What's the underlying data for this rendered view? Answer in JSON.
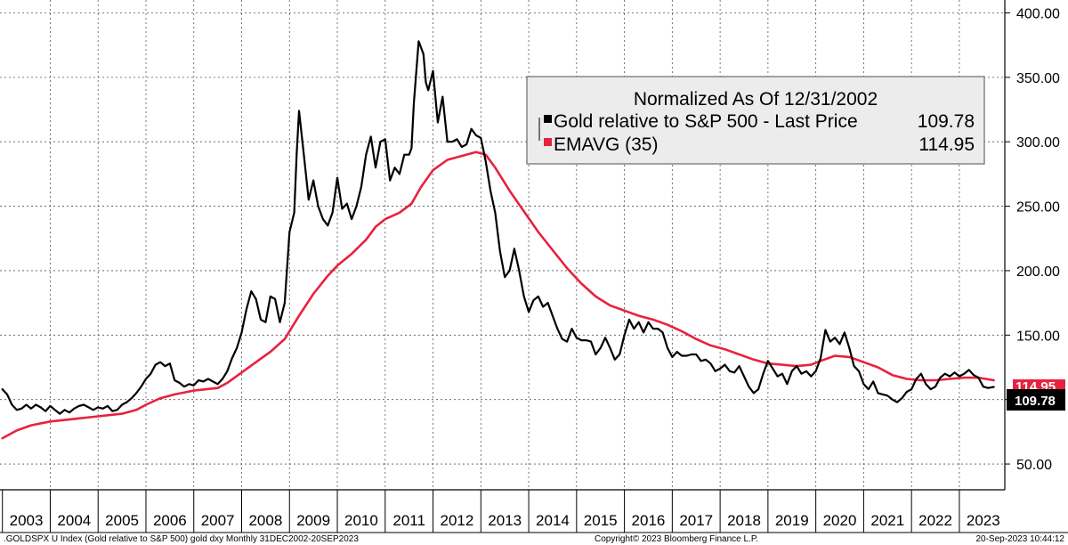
{
  "chart_data": {
    "type": "line",
    "legend": {
      "title": "Normalized As Of 12/31/2002",
      "placement": "top-right",
      "entries": [
        {
          "name": "Gold relative to S&P 500 - Last Price",
          "value": "109.78",
          "color": "#000000"
        },
        {
          "name": "EMAVG (35)",
          "value": "114.95",
          "color": "#e8223e"
        }
      ]
    },
    "y_axis": {
      "position": "right",
      "range": [
        30,
        410
      ],
      "ticks": [
        "50.00",
        "100.00",
        "150.00",
        "200.00",
        "250.00",
        "300.00",
        "350.00",
        "400.00"
      ],
      "grid": true
    },
    "x_axis": {
      "range": [
        2002.95,
        2023.95
      ],
      "ticks": [
        "2003",
        "2004",
        "2005",
        "2006",
        "2007",
        "2008",
        "2009",
        "2010",
        "2011",
        "2012",
        "2013",
        "2014",
        "2015",
        "2016",
        "2017",
        "2018",
        "2019",
        "2020",
        "2021",
        "2022",
        "2023"
      ],
      "grid": true
    },
    "last_value_badges": [
      {
        "text": "114.95",
        "color": "#e8223e"
      },
      {
        "text": "109.78",
        "color": "#000000"
      }
    ],
    "series": [
      {
        "name": "Gold relative to S&P 500 - Last Price",
        "color": "#000000",
        "points": [
          [
            2003.0,
            108
          ],
          [
            2003.1,
            104
          ],
          [
            2003.2,
            96
          ],
          [
            2003.3,
            92
          ],
          [
            2003.4,
            93
          ],
          [
            2003.5,
            96
          ],
          [
            2003.6,
            93
          ],
          [
            2003.7,
            96
          ],
          [
            2003.8,
            94
          ],
          [
            2003.9,
            91
          ],
          [
            2004.0,
            95
          ],
          [
            2004.1,
            92
          ],
          [
            2004.2,
            89
          ],
          [
            2004.3,
            92
          ],
          [
            2004.4,
            90
          ],
          [
            2004.5,
            93
          ],
          [
            2004.6,
            95
          ],
          [
            2004.7,
            96
          ],
          [
            2004.8,
            94
          ],
          [
            2004.9,
            92
          ],
          [
            2005.0,
            94
          ],
          [
            2005.1,
            93
          ],
          [
            2005.2,
            95
          ],
          [
            2005.3,
            91
          ],
          [
            2005.4,
            92
          ],
          [
            2005.5,
            96
          ],
          [
            2005.6,
            98
          ],
          [
            2005.7,
            101
          ],
          [
            2005.8,
            105
          ],
          [
            2005.9,
            110
          ],
          [
            2006.0,
            116
          ],
          [
            2006.1,
            120
          ],
          [
            2006.2,
            127
          ],
          [
            2006.3,
            129
          ],
          [
            2006.4,
            126
          ],
          [
            2006.5,
            128
          ],
          [
            2006.6,
            115
          ],
          [
            2006.7,
            113
          ],
          [
            2006.8,
            110
          ],
          [
            2006.9,
            112
          ],
          [
            2007.0,
            111
          ],
          [
            2007.1,
            115
          ],
          [
            2007.2,
            114
          ],
          [
            2007.3,
            116
          ],
          [
            2007.4,
            114
          ],
          [
            2007.5,
            112
          ],
          [
            2007.6,
            116
          ],
          [
            2007.7,
            122
          ],
          [
            2007.8,
            132
          ],
          [
            2007.9,
            140
          ],
          [
            2008.0,
            152
          ],
          [
            2008.1,
            170
          ],
          [
            2008.2,
            184
          ],
          [
            2008.3,
            178
          ],
          [
            2008.4,
            162
          ],
          [
            2008.5,
            160
          ],
          [
            2008.6,
            180
          ],
          [
            2008.7,
            178
          ],
          [
            2008.8,
            160
          ],
          [
            2008.9,
            175
          ],
          [
            2009.0,
            230
          ],
          [
            2009.1,
            245
          ],
          [
            2009.15,
            290
          ],
          [
            2009.2,
            324
          ],
          [
            2009.3,
            290
          ],
          [
            2009.4,
            255
          ],
          [
            2009.5,
            270
          ],
          [
            2009.6,
            250
          ],
          [
            2009.7,
            240
          ],
          [
            2009.8,
            235
          ],
          [
            2009.9,
            245
          ],
          [
            2010.0,
            272
          ],
          [
            2010.1,
            248
          ],
          [
            2010.2,
            252
          ],
          [
            2010.3,
            240
          ],
          [
            2010.4,
            250
          ],
          [
            2010.5,
            265
          ],
          [
            2010.6,
            290
          ],
          [
            2010.7,
            304
          ],
          [
            2010.8,
            280
          ],
          [
            2010.9,
            300
          ],
          [
            2011.0,
            302
          ],
          [
            2011.1,
            270
          ],
          [
            2011.2,
            280
          ],
          [
            2011.3,
            275
          ],
          [
            2011.4,
            290
          ],
          [
            2011.5,
            290
          ],
          [
            2011.55,
            295
          ],
          [
            2011.6,
            330
          ],
          [
            2011.7,
            378
          ],
          [
            2011.8,
            368
          ],
          [
            2011.85,
            346
          ],
          [
            2011.9,
            340
          ],
          [
            2012.0,
            355
          ],
          [
            2012.1,
            315
          ],
          [
            2012.2,
            335
          ],
          [
            2012.3,
            300
          ],
          [
            2012.4,
            300
          ],
          [
            2012.5,
            302
          ],
          [
            2012.6,
            296
          ],
          [
            2012.7,
            298
          ],
          [
            2012.8,
            310
          ],
          [
            2012.9,
            305
          ],
          [
            2013.0,
            303
          ],
          [
            2013.1,
            285
          ],
          [
            2013.2,
            262
          ],
          [
            2013.3,
            245
          ],
          [
            2013.4,
            215
          ],
          [
            2013.5,
            195
          ],
          [
            2013.6,
            200
          ],
          [
            2013.7,
            217
          ],
          [
            2013.8,
            200
          ],
          [
            2013.9,
            180
          ],
          [
            2014.0,
            168
          ],
          [
            2014.1,
            177
          ],
          [
            2014.2,
            180
          ],
          [
            2014.3,
            172
          ],
          [
            2014.4,
            175
          ],
          [
            2014.5,
            165
          ],
          [
            2014.6,
            155
          ],
          [
            2014.7,
            147
          ],
          [
            2014.8,
            145
          ],
          [
            2014.9,
            155
          ],
          [
            2015.0,
            148
          ],
          [
            2015.1,
            146
          ],
          [
            2015.2,
            146
          ],
          [
            2015.3,
            145
          ],
          [
            2015.4,
            135
          ],
          [
            2015.5,
            140
          ],
          [
            2015.6,
            148
          ],
          [
            2015.7,
            140
          ],
          [
            2015.8,
            131
          ],
          [
            2015.9,
            135
          ],
          [
            2016.0,
            150
          ],
          [
            2016.1,
            162
          ],
          [
            2016.2,
            155
          ],
          [
            2016.3,
            160
          ],
          [
            2016.4,
            152
          ],
          [
            2016.5,
            160
          ],
          [
            2016.6,
            155
          ],
          [
            2016.7,
            155
          ],
          [
            2016.8,
            152
          ],
          [
            2016.9,
            140
          ],
          [
            2017.0,
            133
          ],
          [
            2017.1,
            137
          ],
          [
            2017.2,
            134
          ],
          [
            2017.3,
            134
          ],
          [
            2017.4,
            135
          ],
          [
            2017.5,
            135
          ],
          [
            2017.6,
            130
          ],
          [
            2017.7,
            131
          ],
          [
            2017.8,
            128
          ],
          [
            2017.9,
            122
          ],
          [
            2018.0,
            124
          ],
          [
            2018.1,
            127
          ],
          [
            2018.2,
            122
          ],
          [
            2018.3,
            121
          ],
          [
            2018.4,
            126
          ],
          [
            2018.5,
            118
          ],
          [
            2018.6,
            110
          ],
          [
            2018.7,
            105
          ],
          [
            2018.8,
            108
          ],
          [
            2018.9,
            120
          ],
          [
            2019.0,
            130
          ],
          [
            2019.1,
            124
          ],
          [
            2019.2,
            118
          ],
          [
            2019.3,
            120
          ],
          [
            2019.4,
            112
          ],
          [
            2019.5,
            122
          ],
          [
            2019.6,
            126
          ],
          [
            2019.7,
            120
          ],
          [
            2019.8,
            122
          ],
          [
            2019.9,
            118
          ],
          [
            2020.0,
            122
          ],
          [
            2020.1,
            132
          ],
          [
            2020.2,
            154
          ],
          [
            2020.3,
            145
          ],
          [
            2020.4,
            148
          ],
          [
            2020.5,
            143
          ],
          [
            2020.6,
            152
          ],
          [
            2020.7,
            140
          ],
          [
            2020.8,
            126
          ],
          [
            2020.9,
            122
          ],
          [
            2021.0,
            112
          ],
          [
            2021.1,
            108
          ],
          [
            2021.2,
            114
          ],
          [
            2021.3,
            105
          ],
          [
            2021.4,
            104
          ],
          [
            2021.5,
            103
          ],
          [
            2021.6,
            100
          ],
          [
            2021.7,
            98
          ],
          [
            2021.8,
            101
          ],
          [
            2021.9,
            106
          ],
          [
            2022.0,
            108
          ],
          [
            2022.1,
            116
          ],
          [
            2022.2,
            120
          ],
          [
            2022.3,
            112
          ],
          [
            2022.4,
            108
          ],
          [
            2022.5,
            110
          ],
          [
            2022.6,
            117
          ],
          [
            2022.7,
            120
          ],
          [
            2022.8,
            118
          ],
          [
            2022.9,
            121
          ],
          [
            2023.0,
            118
          ],
          [
            2023.1,
            120
          ],
          [
            2023.2,
            123
          ],
          [
            2023.3,
            119
          ],
          [
            2023.4,
            117
          ],
          [
            2023.5,
            110
          ],
          [
            2023.6,
            109
          ],
          [
            2023.72,
            109.78
          ]
        ]
      },
      {
        "name": "EMAVG (35)",
        "color": "#e8223e",
        "points": [
          [
            2003.0,
            70
          ],
          [
            2003.3,
            76
          ],
          [
            2003.6,
            80
          ],
          [
            2004.0,
            83
          ],
          [
            2004.5,
            85
          ],
          [
            2005.0,
            87
          ],
          [
            2005.5,
            89
          ],
          [
            2005.8,
            92
          ],
          [
            2006.0,
            96
          ],
          [
            2006.3,
            101
          ],
          [
            2006.6,
            104
          ],
          [
            2007.0,
            107
          ],
          [
            2007.5,
            109
          ],
          [
            2007.7,
            113
          ],
          [
            2008.0,
            121
          ],
          [
            2008.3,
            129
          ],
          [
            2008.6,
            137
          ],
          [
            2008.9,
            147
          ],
          [
            2009.2,
            165
          ],
          [
            2009.5,
            182
          ],
          [
            2009.8,
            196
          ],
          [
            2010.0,
            204
          ],
          [
            2010.3,
            213
          ],
          [
            2010.6,
            224
          ],
          [
            2010.8,
            234
          ],
          [
            2011.0,
            240
          ],
          [
            2011.3,
            245
          ],
          [
            2011.55,
            252
          ],
          [
            2011.75,
            265
          ],
          [
            2012.0,
            278
          ],
          [
            2012.3,
            286
          ],
          [
            2012.6,
            289
          ],
          [
            2012.9,
            292
          ],
          [
            2013.1,
            290
          ],
          [
            2013.3,
            280
          ],
          [
            2013.6,
            262
          ],
          [
            2013.9,
            246
          ],
          [
            2014.2,
            230
          ],
          [
            2014.5,
            216
          ],
          [
            2014.8,
            202
          ],
          [
            2015.1,
            190
          ],
          [
            2015.4,
            180
          ],
          [
            2015.7,
            173
          ],
          [
            2016.0,
            169
          ],
          [
            2016.3,
            165
          ],
          [
            2016.6,
            162
          ],
          [
            2016.9,
            158
          ],
          [
            2017.2,
            153
          ],
          [
            2017.5,
            147
          ],
          [
            2017.8,
            142
          ],
          [
            2018.1,
            139
          ],
          [
            2018.4,
            135
          ],
          [
            2018.7,
            131
          ],
          [
            2019.0,
            128
          ],
          [
            2019.3,
            127
          ],
          [
            2019.6,
            126
          ],
          [
            2019.9,
            127
          ],
          [
            2020.1,
            130
          ],
          [
            2020.4,
            134
          ],
          [
            2020.7,
            133
          ],
          [
            2021.0,
            129
          ],
          [
            2021.3,
            125
          ],
          [
            2021.6,
            119
          ],
          [
            2021.9,
            116
          ],
          [
            2022.2,
            115
          ],
          [
            2022.5,
            115
          ],
          [
            2022.8,
            116
          ],
          [
            2023.1,
            117
          ],
          [
            2023.4,
            117
          ],
          [
            2023.72,
            114.95
          ]
        ]
      }
    ]
  },
  "footer": {
    "left": ".GOLDSPX U Index (Gold relative to S&P 500) gold dxy  Monthly 31DEC2002-20SEP2023",
    "center": "Copyright© 2023 Bloomberg Finance L.P.",
    "right": "20-Sep-2023 10:44:12"
  }
}
